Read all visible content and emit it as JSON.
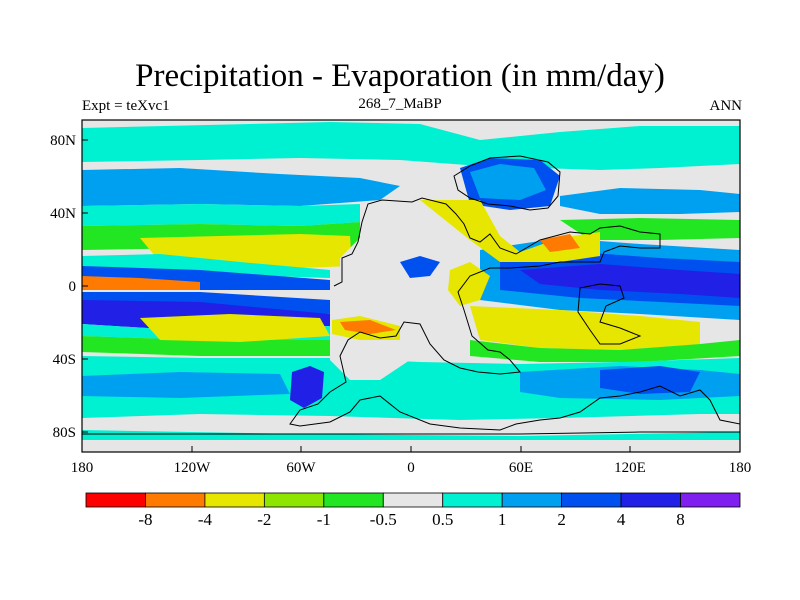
{
  "title": "Precipitation - Evaporation (in mm/day)",
  "subtitle_left": "Expt = teXvc1",
  "subtitle_center": "268_7_MaBP",
  "subtitle_right": "ANN",
  "y_ticks": [
    "80N",
    "40N",
    "0",
    "40S",
    "80S"
  ],
  "x_ticks": [
    "180",
    "120W",
    "60W",
    "0",
    "60E",
    "120E",
    "180"
  ],
  "colorbar": {
    "colors": [
      "#ff0000",
      "#ff7a00",
      "#e6e600",
      "#8ee600",
      "#22e622",
      "#e6e6e6",
      "#00f0d2",
      "#00a0f0",
      "#0050f0",
      "#2020e6",
      "#8020f0"
    ],
    "labels": [
      "-8",
      "-4",
      "-2",
      "-1",
      "-0.5",
      "0.5",
      "1",
      "2",
      "4",
      "8"
    ]
  },
  "palette": {
    "neutral": "#e6e6e6",
    "cyan": "#00f0d2",
    "lightblue": "#00a0f0",
    "blue": "#0050f0",
    "darkblue": "#2020e6",
    "green": "#22e622",
    "lime": "#8ee600",
    "yellow": "#e6e600",
    "orange": "#ff7a00"
  }
}
